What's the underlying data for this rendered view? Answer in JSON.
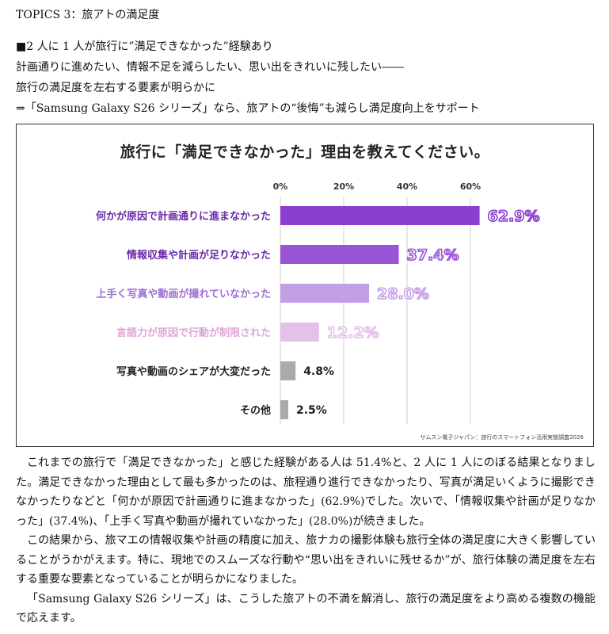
{
  "topic": "TOPICS 3：旅アトの満足度",
  "lead": [
    "■2 人に 1 人が旅行に”満足できなかった”経験あり",
    "計画通りに進めたい、情報不足を減らしたい、思い出をきれいに残したい――",
    "旅行の満足度を左右する要素が明らかに",
    "⇒「Samsung Galaxy S26 シリーズ」なら、旅アトの“後悔”も減らし満足度向上をサポート"
  ],
  "chart_data": {
    "type": "bar",
    "orientation": "horizontal",
    "title": "旅行に「満足できなかった」理由を教えてください。",
    "categories": [
      "何かが原因で計画通りに進まなかった",
      "情報収集や計画が足りなかった",
      "上手く写真や動画が撮れていなかった",
      "言語力が原因で行動が制限された",
      "写真や動画のシェアが大変だった",
      "その他"
    ],
    "values": [
      62.9,
      37.4,
      28.0,
      12.2,
      4.8,
      2.5
    ],
    "value_labels": [
      "62.9%",
      "37.4%",
      "28.0%",
      "12.2%",
      "4.8%",
      "2.5%"
    ],
    "xticks": [
      "0%",
      "20%",
      "40%",
      "60%"
    ],
    "xtick_values": [
      0,
      20,
      40,
      60
    ],
    "xlim": [
      0,
      65
    ],
    "grid": true,
    "colors": [
      "#8a3fd0",
      "#9a55d6",
      "#c2a0e6",
      "#e4c1e8",
      "#aaaaaa",
      "#aaaaaa"
    ],
    "label_colors": [
      "#6a2aa8",
      "#6a2aa8",
      "#9e6fd4",
      "#dda6d8",
      "#222222",
      "#222222"
    ],
    "source": "サムスン電子ジャパン：旅行のスマートフォン活用実態調査2026"
  },
  "body": [
    "これまでの旅行で「満足できなかった」と感じた経験がある人は 51.4%と、2 人に 1 人にのぼる結果となりました。満足できなかった理由として最も多かったのは、旅程通り進行できなかったり、写真が満足いくように撮影できなかったりなどと「何かが原因で計画通りに進まなかった」(62.9%)でした。次いで、「情報収集や計画が足りなかった」(37.4%)、「上手く写真や動画が撮れていなかった」(28.0%)が続きました。",
    "この結果から、旅マエの情報収集や計画の精度に加え、旅ナカの撮影体験も旅行全体の満足度に大きく影響していることがうかがえます。特に、現地でのスムーズな行動や“思い出をきれいに残せるか”が、旅行体験の満足度を左右する重要な要素となっていることが明らかになりました。",
    "「Samsung Galaxy S26 シリーズ」は、こうした旅アトの不満を解消し、旅行の満足度をより高める複数の機能で応えます。"
  ]
}
